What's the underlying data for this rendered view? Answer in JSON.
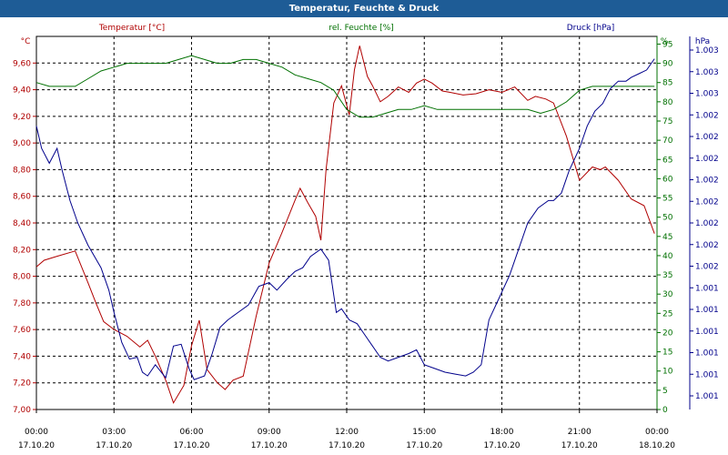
{
  "chart_data": {
    "type": "line",
    "title": "Temperatur, Feuchte & Druck",
    "x_ticks": [
      {
        "time": "00:00",
        "date": "17.10.20"
      },
      {
        "time": "03:00",
        "date": "17.10.20"
      },
      {
        "time": "06:00",
        "date": "17.10.20"
      },
      {
        "time": "09:00",
        "date": "17.10.20"
      },
      {
        "time": "12:00",
        "date": "17.10.20"
      },
      {
        "time": "15:00",
        "date": "17.10.20"
      },
      {
        "time": "18:00",
        "date": "17.10.20"
      },
      {
        "time": "21:00",
        "date": "17.10.20"
      },
      {
        "time": "00:00",
        "date": "18.10.20"
      }
    ],
    "axes": {
      "temperature": {
        "unit": "°C",
        "ylim": [
          7.0,
          9.8
        ],
        "ticks": [
          "7,00",
          "7,20",
          "7,40",
          "7,60",
          "7,80",
          "8,00",
          "8,20",
          "8,40",
          "8,60",
          "8,80",
          "9,00",
          "9,20",
          "9,40",
          "9,60"
        ],
        "color": "#b00000"
      },
      "humidity": {
        "unit": "%",
        "ylim": [
          0,
          97
        ],
        "ticks": [
          "0",
          "5",
          "10",
          "15",
          "20",
          "25",
          "30",
          "35",
          "40",
          "45",
          "50",
          "55",
          "60",
          "65",
          "70",
          "75",
          "80",
          "85",
          "90",
          "95"
        ],
        "color": "#007000"
      },
      "pressure": {
        "unit": "hPa",
        "ticks": [
          "1.001",
          "1.001",
          "1.001",
          "1.001",
          "1.001",
          "1.001",
          "1.002",
          "1.002",
          "1.002",
          "1.002",
          "1.002",
          "1.002",
          "1.002",
          "1.002",
          "1.003",
          "1.003",
          "1.003"
        ],
        "color": "#00008b"
      }
    },
    "grid": true,
    "series": [
      {
        "name": "Temperatur [°C]",
        "axis": "temperature",
        "color": "#b00000",
        "x_hours": [
          0,
          0.3,
          0.8,
          1.5,
          2.0,
          2.3,
          2.6,
          3.0,
          3.5,
          4.0,
          4.3,
          4.6,
          5.0,
          5.3,
          5.7,
          6.0,
          6.3,
          6.6,
          7.0,
          7.3,
          7.6,
          8.0,
          8.5,
          9.0,
          9.5,
          10.0,
          10.2,
          10.5,
          10.8,
          11.0,
          11.2,
          11.5,
          11.8,
          12.1,
          12.3,
          12.5,
          12.8,
          13.0,
          13.3,
          13.6,
          14.0,
          14.4,
          14.7,
          15.0,
          15.3,
          15.7,
          16.0,
          16.5,
          17.0,
          17.5,
          18.0,
          18.5,
          19.0,
          19.3,
          19.7,
          20.0,
          20.5,
          21.0,
          21.5,
          21.8,
          22.0,
          22.5,
          23.0,
          23.5,
          23.9
        ],
        "values": [
          8.07,
          8.12,
          8.15,
          8.19,
          7.95,
          7.8,
          7.66,
          7.6,
          7.55,
          7.47,
          7.52,
          7.4,
          7.22,
          7.05,
          7.18,
          7.48,
          7.67,
          7.3,
          7.2,
          7.15,
          7.22,
          7.25,
          7.7,
          8.1,
          8.33,
          8.57,
          8.66,
          8.55,
          8.45,
          8.27,
          8.8,
          9.3,
          9.43,
          9.21,
          9.55,
          9.73,
          9.5,
          9.43,
          9.31,
          9.35,
          9.42,
          9.38,
          9.45,
          9.48,
          9.45,
          9.39,
          9.38,
          9.36,
          9.37,
          9.4,
          9.38,
          9.42,
          9.32,
          9.35,
          9.33,
          9.3,
          9.05,
          8.72,
          8.82,
          8.8,
          8.82,
          8.72,
          8.58,
          8.53,
          8.32
        ]
      },
      {
        "name": "rel. Feuchte [%]",
        "axis": "humidity",
        "color": "#007000",
        "x_hours": [
          0,
          0.5,
          1.0,
          1.5,
          2.0,
          2.5,
          3.0,
          3.5,
          4.0,
          4.5,
          5.0,
          5.5,
          6.0,
          6.5,
          7.0,
          7.5,
          8.0,
          8.5,
          9.0,
          9.5,
          10.0,
          10.5,
          11.0,
          11.5,
          12.0,
          12.5,
          13.0,
          13.5,
          14.0,
          14.5,
          15.0,
          15.5,
          16.0,
          16.5,
          17.0,
          17.5,
          18.0,
          18.5,
          19.0,
          19.5,
          20.0,
          20.5,
          21.0,
          21.5,
          22.0,
          22.5,
          23.0,
          23.5,
          23.9
        ],
        "values": [
          85,
          84,
          84,
          84,
          86,
          88,
          89,
          90,
          90,
          90,
          90,
          91,
          92,
          91,
          90,
          90,
          91,
          91,
          90,
          89,
          87,
          86,
          85,
          83,
          78,
          76,
          76,
          77,
          78,
          78,
          79,
          78,
          78,
          78,
          78,
          78,
          78,
          78,
          78,
          77,
          78,
          80,
          83,
          84,
          84,
          84,
          84,
          84,
          84
        ]
      },
      {
        "name": "Druck [hPa]",
        "axis": "pressure",
        "color": "#00008b",
        "x_hours": [
          0,
          0.2,
          0.5,
          0.8,
          1.0,
          1.3,
          1.6,
          2.0,
          2.5,
          2.8,
          3.0,
          3.3,
          3.6,
          3.9,
          4.1,
          4.3,
          4.6,
          5.0,
          5.3,
          5.6,
          5.9,
          6.1,
          6.5,
          6.8,
          7.1,
          7.4,
          7.8,
          8.2,
          8.6,
          9.0,
          9.3,
          9.7,
          10.0,
          10.3,
          10.6,
          11.0,
          11.3,
          11.6,
          11.8,
          12.1,
          12.4,
          12.7,
          13.0,
          13.3,
          13.6,
          14.0,
          14.4,
          14.7,
          15.0,
          15.4,
          15.8,
          16.2,
          16.6,
          16.9,
          17.2,
          17.5,
          17.9,
          18.3,
          18.7,
          19.0,
          19.4,
          19.8,
          20.0,
          20.3,
          20.6,
          21.0,
          21.3,
          21.6,
          21.9,
          22.2,
          22.5,
          22.8,
          23.0,
          23.3,
          23.6,
          23.9
        ],
        "values": [
          0.76,
          0.7,
          0.66,
          0.7,
          0.64,
          0.56,
          0.5,
          0.44,
          0.38,
          0.32,
          0.26,
          0.18,
          0.135,
          0.14,
          0.1,
          0.09,
          0.12,
          0.085,
          0.17,
          0.175,
          0.11,
          0.08,
          0.09,
          0.15,
          0.22,
          0.24,
          0.26,
          0.28,
          0.33,
          0.34,
          0.32,
          0.35,
          0.37,
          0.38,
          0.41,
          0.43,
          0.4,
          0.26,
          0.27,
          0.24,
          0.23,
          0.2,
          0.17,
          0.14,
          0.13,
          0.14,
          0.15,
          0.16,
          0.12,
          0.11,
          0.1,
          0.095,
          0.09,
          0.1,
          0.12,
          0.24,
          0.3,
          0.36,
          0.44,
          0.5,
          0.54,
          0.56,
          0.56,
          0.58,
          0.64,
          0.7,
          0.76,
          0.8,
          0.82,
          0.86,
          0.88,
          0.88,
          0.89,
          0.9,
          0.91,
          0.94
        ]
      }
    ]
  }
}
